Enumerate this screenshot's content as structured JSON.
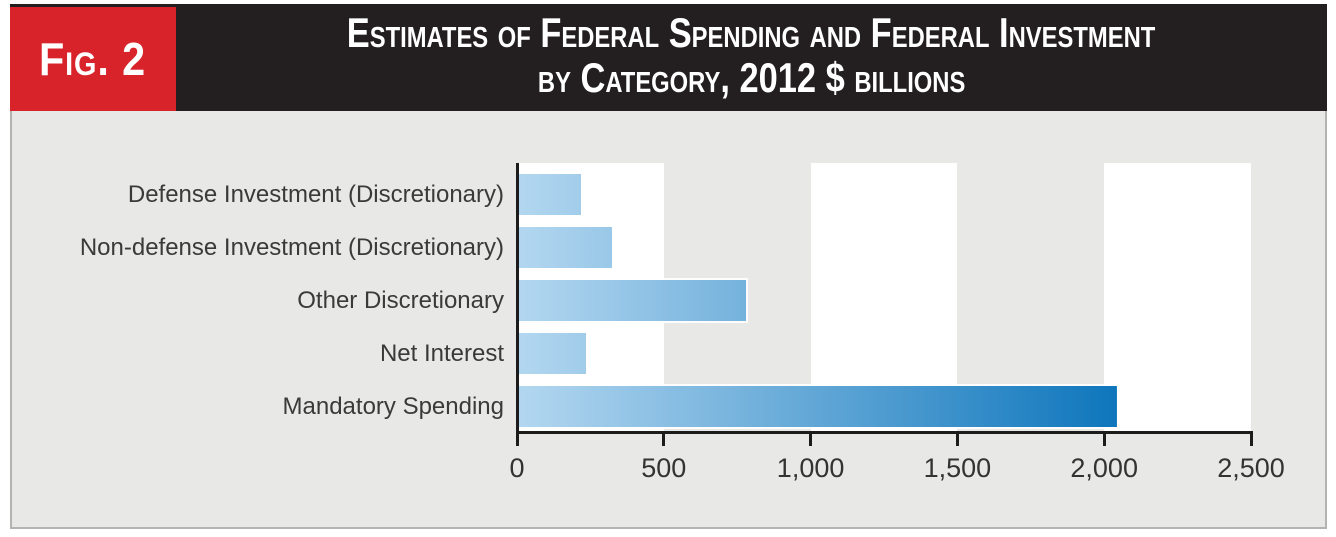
{
  "figure": {
    "fig_label": "Fig. 2",
    "title_line1": "Estimates of Federal Spending and Federal Investment",
    "title_line2": "by Category, 2012 $ billions"
  },
  "chart_data": {
    "type": "bar",
    "orientation": "horizontal",
    "title": "Estimates of Federal Spending and Federal Investment by Category, 2012 $ billions",
    "unit": "2012 $ billions",
    "categories": [
      "Defense Investment (Discretionary)",
      "Non-defense Investment (Discretionary)",
      "Other Discretionary",
      "Net Interest",
      "Mandatory Spending"
    ],
    "values": [
      215,
      320,
      775,
      230,
      2040
    ],
    "xlim": [
      0,
      2500
    ],
    "xtick_values": [
      0,
      500,
      1000,
      1500,
      2000,
      2500
    ],
    "xticks": [
      "0",
      "500",
      "1,000",
      "1,500",
      "2,000",
      "2,500"
    ],
    "legend": "none",
    "grid": "alternating vertical bands of 500 units, white over gray background",
    "white_bands": [
      [
        0,
        500
      ],
      [
        1000,
        1500
      ],
      [
        2000,
        2500
      ]
    ]
  },
  "colors": {
    "fig_badge_red": "#d8232a",
    "header_black": "#231f20",
    "chart_background_gray": "#e8e8e6",
    "band_white": "#ffffff",
    "frame_border_gray": "#b3b3b1",
    "axis_black": "#1c1c1c",
    "bar_gradient_left": "#b3d7f0",
    "bar_gradient_right": "#0e76bc"
  }
}
